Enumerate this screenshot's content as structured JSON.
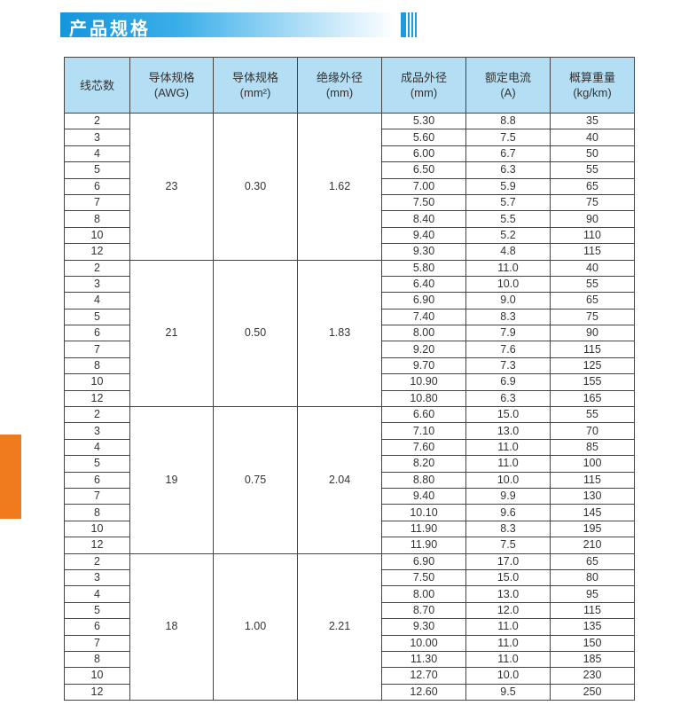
{
  "title": "产品规格",
  "colors": {
    "title_blue": "#1596dc",
    "header_bg": "#b4def4",
    "side_tab": "#f07a1e"
  },
  "table": {
    "headers": [
      {
        "line1": "线芯数",
        "line2": ""
      },
      {
        "line1": "导体规格",
        "line2": "(AWG)"
      },
      {
        "line1": "导体规格",
        "line2": "(mm²)"
      },
      {
        "line1": "绝缘外径",
        "line2": "(mm)"
      },
      {
        "line1": "成品外径",
        "line2": "(mm)"
      },
      {
        "line1": "额定电流",
        "line2": "(A)"
      },
      {
        "line1": "概算重量",
        "line2": "(kg/km)"
      }
    ],
    "groups": [
      {
        "awg": "23",
        "mm2": "0.30",
        "insulation": "1.62",
        "rows": [
          [
            "2",
            "5.30",
            "8.8",
            "35"
          ],
          [
            "3",
            "5.60",
            "7.5",
            "40"
          ],
          [
            "4",
            "6.00",
            "6.7",
            "50"
          ],
          [
            "5",
            "6.50",
            "6.3",
            "55"
          ],
          [
            "6",
            "7.00",
            "5.9",
            "65"
          ],
          [
            "7",
            "7.50",
            "5.7",
            "75"
          ],
          [
            "8",
            "8.40",
            "5.5",
            "90"
          ],
          [
            "10",
            "9.40",
            "5.2",
            "110"
          ],
          [
            "12",
            "9.30",
            "4.8",
            "115"
          ]
        ]
      },
      {
        "awg": "21",
        "mm2": "0.50",
        "insulation": "1.83",
        "rows": [
          [
            "2",
            "5.80",
            "11.0",
            "40"
          ],
          [
            "3",
            "6.40",
            "10.0",
            "55"
          ],
          [
            "4",
            "6.90",
            "9.0",
            "65"
          ],
          [
            "5",
            "7.40",
            "8.3",
            "75"
          ],
          [
            "6",
            "8.00",
            "7.9",
            "90"
          ],
          [
            "7",
            "9.20",
            "7.6",
            "115"
          ],
          [
            "8",
            "9.70",
            "7.3",
            "125"
          ],
          [
            "10",
            "10.90",
            "6.9",
            "155"
          ],
          [
            "12",
            "10.80",
            "6.3",
            "165"
          ]
        ]
      },
      {
        "awg": "19",
        "mm2": "0.75",
        "insulation": "2.04",
        "rows": [
          [
            "2",
            "6.60",
            "15.0",
            "55"
          ],
          [
            "3",
            "7.10",
            "13.0",
            "70"
          ],
          [
            "4",
            "7.60",
            "11.0",
            "85"
          ],
          [
            "5",
            "8.20",
            "11.0",
            "100"
          ],
          [
            "6",
            "8.80",
            "10.0",
            "115"
          ],
          [
            "7",
            "9.40",
            "9.9",
            "130"
          ],
          [
            "8",
            "10.10",
            "9.6",
            "145"
          ],
          [
            "10",
            "11.90",
            "8.3",
            "195"
          ],
          [
            "12",
            "11.90",
            "7.5",
            "210"
          ]
        ]
      },
      {
        "awg": "18",
        "mm2": "1.00",
        "insulation": "2.21",
        "rows": [
          [
            "2",
            "6.90",
            "17.0",
            "65"
          ],
          [
            "3",
            "7.50",
            "15.0",
            "80"
          ],
          [
            "4",
            "8.00",
            "13.0",
            "95"
          ],
          [
            "5",
            "8.70",
            "12.0",
            "115"
          ],
          [
            "6",
            "9.30",
            "11.0",
            "135"
          ],
          [
            "7",
            "10.00",
            "11.0",
            "150"
          ],
          [
            "8",
            "11.30",
            "11.0",
            "185"
          ],
          [
            "10",
            "12.70",
            "10.0",
            "230"
          ],
          [
            "12",
            "12.60",
            "9.5",
            "250"
          ]
        ]
      }
    ]
  }
}
